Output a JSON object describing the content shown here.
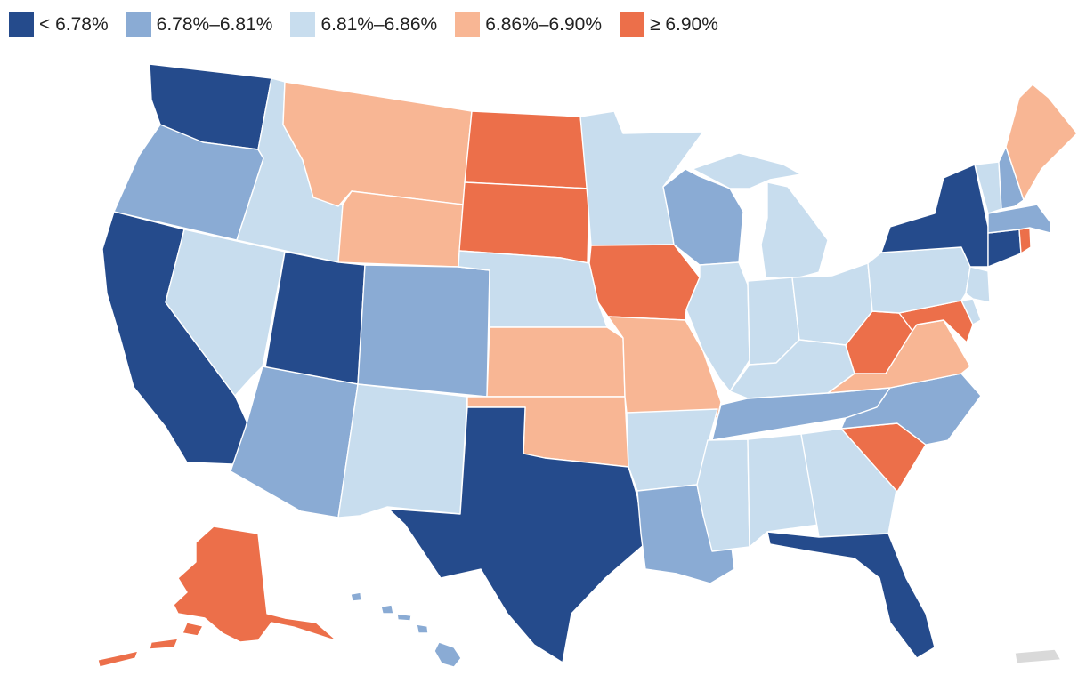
{
  "legend": [
    {
      "id": "b1",
      "label": "< 6.78%",
      "color": "#254b8c"
    },
    {
      "id": "b2",
      "label": "6.78%–6.81%",
      "color": "#8aabd4"
    },
    {
      "id": "b3",
      "label": "6.81%–6.86%",
      "color": "#c8ddee"
    },
    {
      "id": "b4",
      "label": "6.86%–6.90%",
      "color": "#f8b694"
    },
    {
      "id": "b5",
      "label": "≥ 6.90%",
      "color": "#ec6f4a"
    }
  ],
  "no_data_color": "#d9d9d9",
  "states": {
    "WA": "b1",
    "OR": "b2",
    "CA": "b1",
    "NV": "b3",
    "ID": "b3",
    "MT": "b4",
    "WY": "b4",
    "UT": "b1",
    "AZ": "b2",
    "CO": "b2",
    "NM": "b3",
    "ND": "b5",
    "SD": "b5",
    "NE": "b3",
    "KS": "b4",
    "OK": "b4",
    "TX": "b1",
    "MN": "b3",
    "IA": "b5",
    "MO": "b4",
    "AR": "b3",
    "LA": "b2",
    "WI": "b2",
    "IL": "b3",
    "MI": "b3",
    "IN": "b3",
    "OH": "b3",
    "KY": "b3",
    "TN": "b2",
    "MS": "b3",
    "AL": "b3",
    "GA": "b3",
    "FL": "b1",
    "SC": "b5",
    "NC": "b2",
    "VA": "b4",
    "WV": "b5",
    "MD": "b5",
    "DE": "b3",
    "PA": "b3",
    "NJ": "b3",
    "NY": "b1",
    "CT": "b1",
    "RI": "b5",
    "MA": "b2",
    "VT": "b3",
    "NH": "b2",
    "ME": "b4",
    "AK": "b5",
    "HI": "b2",
    "PR": "nodata"
  }
}
